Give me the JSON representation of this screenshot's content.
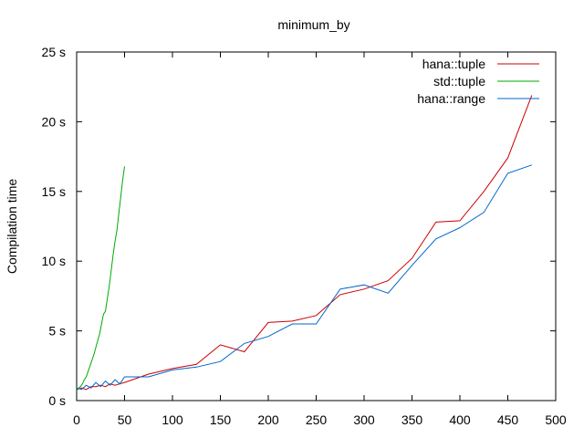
{
  "chart_data": {
    "type": "line",
    "title": "minimum_by",
    "xlabel": "",
    "ylabel": "Compilation time",
    "xlim": [
      0,
      500
    ],
    "ylim": [
      0,
      25
    ],
    "grid": false,
    "legend_position": "top-right",
    "x_ticks": [
      {
        "value": 0,
        "label": "0"
      },
      {
        "value": 50,
        "label": "50"
      },
      {
        "value": 100,
        "label": "100"
      },
      {
        "value": 150,
        "label": "150"
      },
      {
        "value": 200,
        "label": "200"
      },
      {
        "value": 250,
        "label": "250"
      },
      {
        "value": 300,
        "label": "300"
      },
      {
        "value": 350,
        "label": "350"
      },
      {
        "value": 400,
        "label": "400"
      },
      {
        "value": 450,
        "label": "450"
      },
      {
        "value": 500,
        "label": "500"
      }
    ],
    "y_ticks": [
      {
        "value": 0,
        "label": "0 s"
      },
      {
        "value": 5,
        "label": "5 s"
      },
      {
        "value": 10,
        "label": "10 s"
      },
      {
        "value": 15,
        "label": "15 s"
      },
      {
        "value": 20,
        "label": "20 s"
      },
      {
        "value": 25,
        "label": "25 s"
      }
    ],
    "series": [
      {
        "name": "hana::tuple",
        "color": "#cc0000",
        "x": [
          0,
          5,
          10,
          15,
          20,
          25,
          30,
          35,
          40,
          45,
          50,
          75,
          100,
          125,
          150,
          175,
          200,
          225,
          250,
          275,
          300,
          325,
          350,
          375,
          400,
          425,
          450,
          475
        ],
        "y": [
          0.8,
          0.9,
          0.8,
          1.0,
          1.0,
          1.1,
          1.0,
          1.2,
          1.1,
          1.2,
          1.3,
          1.9,
          2.3,
          2.6,
          4.0,
          3.5,
          5.6,
          5.7,
          6.1,
          7.6,
          8.0,
          8.6,
          10.2,
          12.8,
          12.9,
          15.0,
          17.4,
          21.9
        ]
      },
      {
        "name": "std::tuple",
        "color": "#00aa00",
        "x": [
          0,
          2,
          4,
          6,
          8,
          10,
          12,
          14,
          16,
          18,
          20,
          22,
          24,
          26,
          28,
          30,
          32,
          34,
          36,
          38,
          40,
          42,
          44,
          46,
          48,
          50
        ],
        "y": [
          0.7,
          0.9,
          1.0,
          1.2,
          1.5,
          1.7,
          2.1,
          2.5,
          2.9,
          3.3,
          3.8,
          4.3,
          4.8,
          5.5,
          6.2,
          6.4,
          7.3,
          8.2,
          9.3,
          10.4,
          11.4,
          12.2,
          13.4,
          14.6,
          15.8,
          16.8
        ]
      },
      {
        "name": "hana::range",
        "color": "#0066cc",
        "x": [
          0,
          5,
          10,
          15,
          20,
          25,
          30,
          35,
          40,
          45,
          50,
          75,
          100,
          125,
          150,
          175,
          200,
          225,
          250,
          275,
          300,
          325,
          350,
          375,
          400,
          425,
          450,
          475
        ],
        "y": [
          0.9,
          0.8,
          1.1,
          0.9,
          1.3,
          1.0,
          1.4,
          1.1,
          1.5,
          1.2,
          1.7,
          1.7,
          2.2,
          2.4,
          2.8,
          4.1,
          4.6,
          5.5,
          5.5,
          8.0,
          8.3,
          7.7,
          9.7,
          11.6,
          12.4,
          13.5,
          16.3,
          16.9
        ]
      }
    ]
  }
}
